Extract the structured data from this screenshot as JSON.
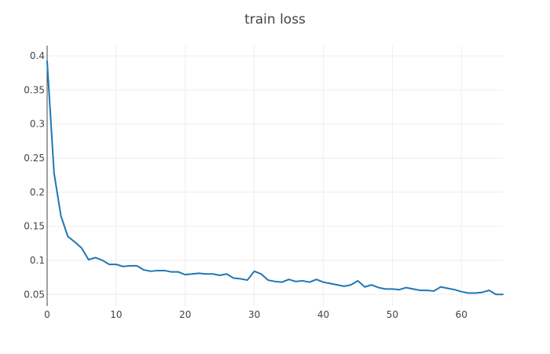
{
  "chart_data": {
    "type": "line",
    "title": "train loss",
    "xlabel": "",
    "ylabel": "",
    "xlim": [
      0,
      66
    ],
    "ylim": [
      0.033,
      0.415
    ],
    "x_ticks": [
      0,
      10,
      20,
      30,
      40,
      50,
      60
    ],
    "y_ticks": [
      0.05,
      0.1,
      0.15,
      0.2,
      0.25,
      0.3,
      0.35,
      0.4
    ],
    "y_tick_labels": [
      "0.05",
      "0.1",
      "0.15",
      "0.2",
      "0.25",
      "0.3",
      "0.35",
      "0.4"
    ],
    "grid": true,
    "legend": "none",
    "colors": {
      "series": "#1f77b4",
      "grid": "#eeeeee",
      "axis": "#444444",
      "text": "#444444"
    },
    "series": [
      {
        "x": [
          0,
          1,
          2,
          3,
          4,
          5,
          6,
          7,
          8,
          9,
          10,
          11,
          12,
          13,
          14,
          15,
          16,
          17,
          18,
          19,
          20,
          21,
          22,
          23,
          24,
          25,
          26,
          27,
          28,
          29,
          30,
          31,
          32,
          33,
          34,
          35,
          36,
          37,
          38,
          39,
          40,
          41,
          42,
          43,
          44,
          45,
          46,
          47,
          48,
          49,
          50,
          51,
          52,
          53,
          54,
          55,
          56,
          57,
          58,
          59,
          60,
          61,
          62,
          63,
          64,
          65,
          66
        ],
        "values": [
          0.392,
          0.228,
          0.165,
          0.135,
          0.127,
          0.118,
          0.101,
          0.104,
          0.1,
          0.094,
          0.094,
          0.091,
          0.092,
          0.092,
          0.086,
          0.084,
          0.085,
          0.085,
          0.083,
          0.083,
          0.079,
          0.08,
          0.081,
          0.08,
          0.08,
          0.078,
          0.08,
          0.074,
          0.073,
          0.071,
          0.084,
          0.08,
          0.071,
          0.069,
          0.068,
          0.072,
          0.069,
          0.07,
          0.068,
          0.072,
          0.068,
          0.066,
          0.064,
          0.062,
          0.064,
          0.07,
          0.061,
          0.064,
          0.06,
          0.058,
          0.058,
          0.057,
          0.06,
          0.058,
          0.056,
          0.056,
          0.055,
          0.061,
          0.059,
          0.057,
          0.054,
          0.052,
          0.052,
          0.053,
          0.056,
          0.05,
          0.05
        ]
      }
    ]
  }
}
